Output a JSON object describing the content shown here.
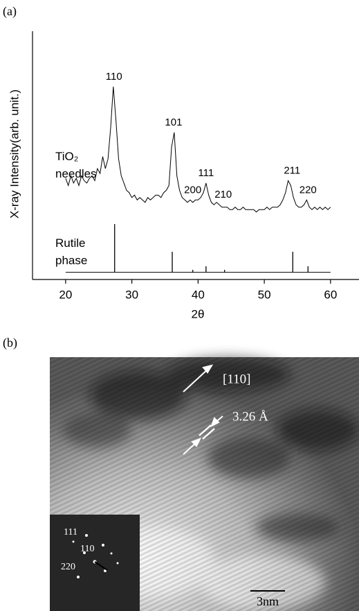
{
  "panel_labels": [
    "(a)",
    "(b)"
  ],
  "chart_data": {
    "type": "line",
    "ylabel": "X-ray Intensity(arb. unit.)",
    "xlabel": "2θ",
    "xlim": [
      15,
      64.3
    ],
    "xticks": [
      20,
      30,
      40,
      50,
      60
    ],
    "ylim": [
      -3,
      100
    ],
    "series": [
      {
        "name": "TiO₂ needles",
        "color": "#000000",
        "x": [
          20,
          20.4,
          20.8,
          21.2,
          21.6,
          22,
          22.4,
          22.8,
          23.2,
          23.6,
          24,
          24.4,
          24.8,
          25.2,
          25.6,
          26,
          26.4,
          26.8,
          27.2,
          27.6,
          28,
          28.4,
          28.8,
          29.2,
          29.6,
          30,
          30.4,
          30.8,
          31.2,
          31.6,
          32,
          32.4,
          32.8,
          33.2,
          33.6,
          34,
          34.4,
          34.8,
          35.2,
          35.6,
          36,
          36.4,
          36.8,
          37.2,
          37.6,
          38,
          38.4,
          38.8,
          39.2,
          39.6,
          40,
          40.4,
          40.8,
          41.2,
          41.6,
          42,
          42.4,
          42.8,
          43.2,
          43.6,
          44,
          44.4,
          44.8,
          45.2,
          45.6,
          46,
          46.4,
          46.8,
          47.2,
          47.6,
          48,
          48.4,
          48.8,
          49.2,
          49.6,
          50,
          50.4,
          50.8,
          51.2,
          51.6,
          52,
          52.4,
          52.8,
          53.2,
          53.6,
          54,
          54.4,
          54.8,
          55.2,
          55.6,
          56,
          56.4,
          56.8,
          57.2,
          57.6,
          58,
          58.4,
          58.8,
          59.2,
          59.6,
          60
        ],
        "values": [
          39,
          36,
          40,
          37,
          39,
          36,
          40,
          38,
          37,
          39,
          40,
          38,
          43,
          41,
          48,
          43,
          47,
          60,
          77,
          63,
          47,
          40,
          37,
          34,
          33,
          31,
          32,
          30,
          31,
          30,
          29,
          31,
          30,
          31,
          32,
          32,
          31,
          33,
          34,
          36,
          52,
          58,
          40,
          34,
          31,
          30,
          29,
          30,
          29,
          30,
          30,
          31,
          33,
          37,
          32,
          29,
          28,
          29,
          28,
          27,
          27,
          27,
          26,
          26,
          27,
          26,
          26,
          27,
          26,
          26,
          26,
          26,
          25,
          26,
          26,
          26,
          27,
          26,
          27,
          27,
          27,
          28,
          30,
          33,
          38,
          36,
          31,
          28,
          27,
          27,
          28,
          30,
          27,
          26,
          27,
          26,
          27,
          26,
          27,
          26,
          27
        ]
      },
      {
        "name": "Rutile phase",
        "type": "stick",
        "color": "#000000",
        "x": [
          27.4,
          36.1,
          39.2,
          41.2,
          44.0,
          54.3,
          56.6
        ],
        "values": [
          20,
          8.5,
          1,
          2.5,
          1,
          8.5,
          2.5
        ]
      }
    ],
    "peak_labels": [
      {
        "label": "110",
        "x": 27.3
      },
      {
        "label": "101",
        "x": 36.3
      },
      {
        "label": "200",
        "x": 39.2
      },
      {
        "label": "111",
        "x": 41.2
      },
      {
        "label": "210",
        "x": 43.8
      },
      {
        "label": "211",
        "x": 54.2
      },
      {
        "label": "220",
        "x": 56.6
      }
    ]
  },
  "panel_b": {
    "direction": "[110]",
    "spacing": "3.26 Å",
    "inset_labels": [
      "111",
      "110",
      "220"
    ],
    "scale_bar": "3nm"
  }
}
